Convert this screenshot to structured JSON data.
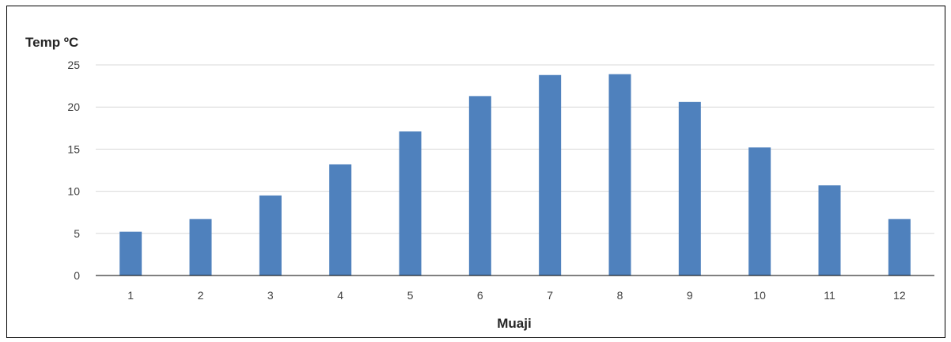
{
  "chart_data": {
    "type": "bar",
    "ylabel": "Temp ºC",
    "xlabel": "Muaji",
    "categories": [
      "1",
      "2",
      "3",
      "4",
      "5",
      "6",
      "7",
      "8",
      "9",
      "10",
      "11",
      "12"
    ],
    "values": [
      5.2,
      6.7,
      9.5,
      13.2,
      17.1,
      21.3,
      23.8,
      23.9,
      20.6,
      15.2,
      10.7,
      6.7
    ],
    "ylim": [
      0,
      25
    ],
    "yticks": [
      "0",
      "5",
      "10",
      "15",
      "20",
      "25"
    ],
    "grid": true,
    "legend": "none",
    "bar_color": "#4f81bd"
  }
}
